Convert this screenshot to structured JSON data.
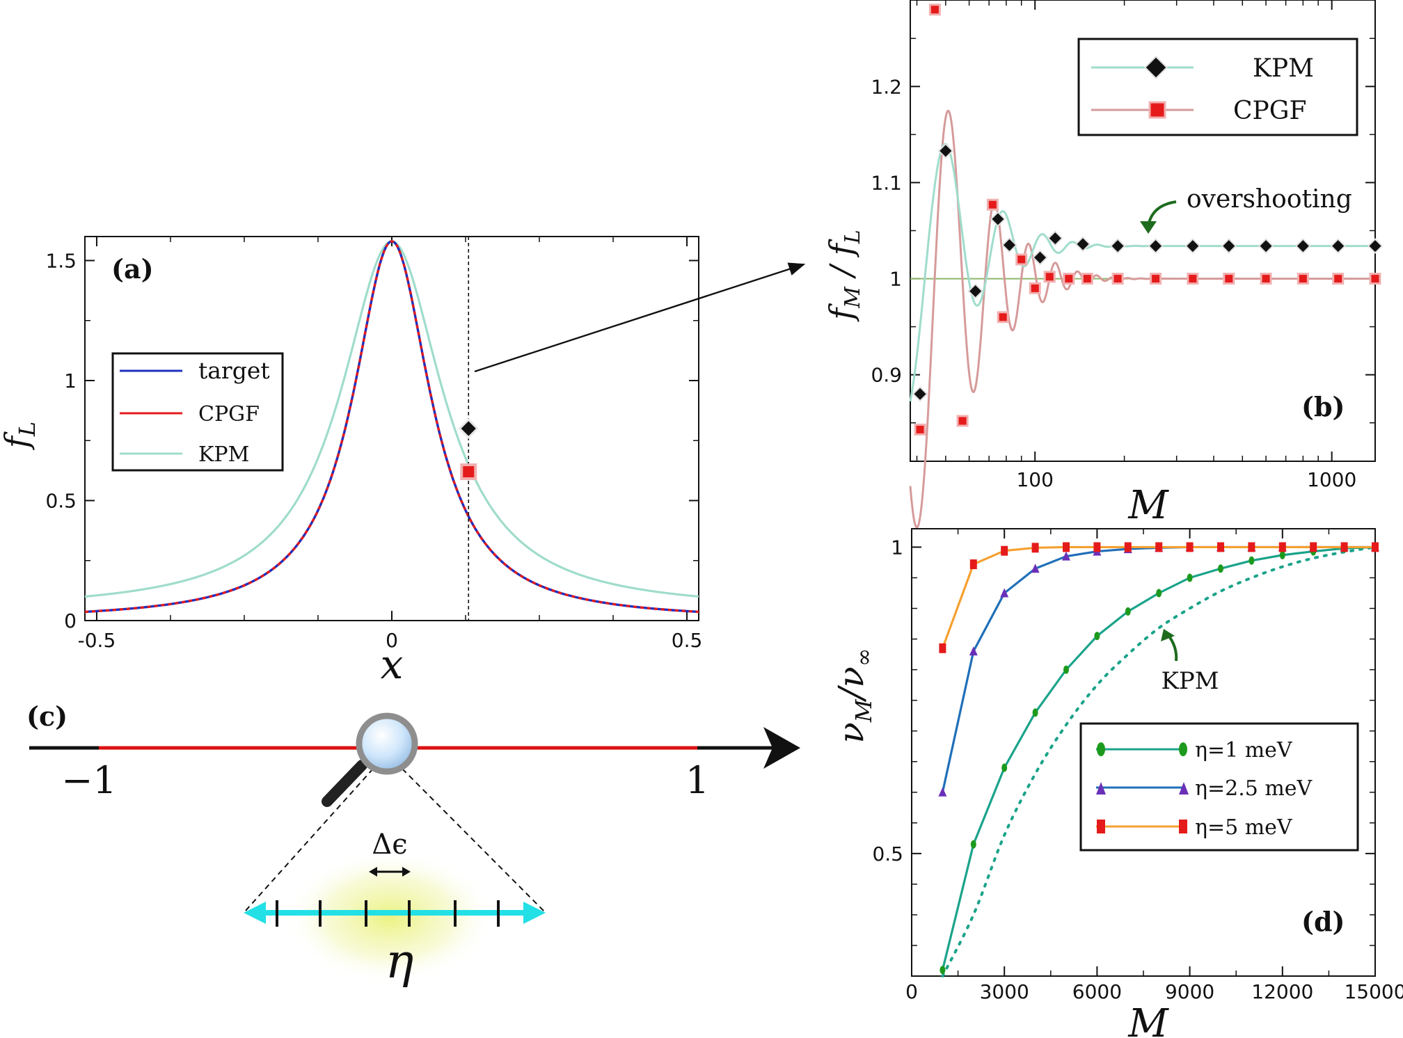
{
  "colors": {
    "target": "#1f2fbf",
    "cpgf": "#e51b1b",
    "kpm": "#9fdccb",
    "cpgf_b": "#d69a9a",
    "eta1": "#1aa38a",
    "eta25": "#1f6fb8",
    "eta5": "#f5a030",
    "arrow_green": "#1e6b1e",
    "line_red": "#dd1111",
    "cyan": "#22e0e6"
  },
  "chart_data": [
    {
      "id": "a",
      "type": "line",
      "panel_label": "(a)",
      "xlabel": "x",
      "ylabel": "f_L",
      "xlim": [
        -0.52,
        0.52
      ],
      "ylim": [
        0,
        1.6
      ],
      "xticks": [
        -0.5,
        0,
        0.5
      ],
      "xtick_labels": [
        "-0.5",
        "0",
        "0.5"
      ],
      "yticks": [
        0,
        0.5,
        1,
        1.5
      ],
      "ytick_labels": [
        "0",
        "0.5",
        "1",
        "1.5"
      ],
      "legend": {
        "position": "center-left",
        "entries": [
          "target",
          "CPGF",
          "KPM"
        ]
      },
      "series": [
        {
          "name": "target",
          "x": [
            -0.52,
            -0.4,
            -0.3,
            -0.2,
            -0.15,
            -0.1,
            -0.06,
            -0.03,
            0,
            0.03,
            0.06,
            0.1,
            0.13,
            0.15,
            0.2,
            0.3,
            0.4,
            0.52
          ],
          "y": [
            0.06,
            0.1,
            0.17,
            0.35,
            0.55,
            0.92,
            1.3,
            1.5,
            1.58,
            1.5,
            1.3,
            0.92,
            0.62,
            0.55,
            0.35,
            0.17,
            0.1,
            0.06
          ]
        },
        {
          "name": "CPGF",
          "x": [
            -0.52,
            -0.4,
            -0.3,
            -0.2,
            -0.15,
            -0.1,
            -0.06,
            -0.03,
            0,
            0.03,
            0.06,
            0.1,
            0.13,
            0.15,
            0.2,
            0.3,
            0.4,
            0.52
          ],
          "y": [
            0.06,
            0.1,
            0.17,
            0.35,
            0.55,
            0.92,
            1.3,
            1.5,
            1.58,
            1.5,
            1.3,
            0.92,
            0.62,
            0.55,
            0.35,
            0.17,
            0.1,
            0.06
          ]
        },
        {
          "name": "KPM",
          "x": [
            -0.52,
            -0.4,
            -0.3,
            -0.2,
            -0.15,
            -0.1,
            -0.06,
            -0.03,
            0,
            0.03,
            0.06,
            0.1,
            0.13,
            0.15,
            0.2,
            0.3,
            0.4,
            0.52
          ],
          "y": [
            0.17,
            0.25,
            0.36,
            0.6,
            0.8,
            1.12,
            1.4,
            1.54,
            1.58,
            1.54,
            1.4,
            1.12,
            0.8,
            0.75,
            0.55,
            0.33,
            0.23,
            0.17
          ]
        }
      ],
      "markers": [
        {
          "series": "KPM",
          "x": 0.13,
          "y": 0.8,
          "shape": "diamond"
        },
        {
          "series": "CPGF",
          "x": 0.13,
          "y": 0.62,
          "shape": "square"
        }
      ],
      "vline_x": 0.13
    },
    {
      "id": "b",
      "type": "line",
      "panel_label": "(b)",
      "xlabel": "M",
      "ylabel": "f_M / f_L",
      "xscale": "log",
      "xlim": [
        38,
        1400
      ],
      "ylim": [
        0.81,
        1.29
      ],
      "xticks": [
        100,
        1000
      ],
      "xtick_labels": [
        "100",
        "1000"
      ],
      "yticks": [
        0.9,
        1,
        1.1,
        1.2
      ],
      "ytick_labels": [
        "0.9",
        "1",
        "1.1",
        "1.2"
      ],
      "hline_y": 1,
      "annotation": "overshooting",
      "legend": {
        "position": "top-right",
        "entries": [
          "KPM",
          "CPGF"
        ]
      },
      "series": [
        {
          "name": "KPM",
          "x": [
            40,
            48,
            56,
            64,
            72,
            80,
            88,
            96,
            104,
            112,
            120,
            130,
            140,
            160,
            200,
            250,
            330,
            420,
            550,
            700,
            900,
            1100,
            1400
          ],
          "y": [
            0.84,
            0.93,
            1.12,
            1.08,
            1.0,
            1.03,
            1.06,
            1.04,
            1.02,
            1.03,
            1.04,
            1.032,
            1.035,
            1.034,
            1.034,
            1.034,
            1.034,
            1.034,
            1.034,
            1.034,
            1.034,
            1.034,
            1.034
          ]
        },
        {
          "name": "CPGF",
          "x": [
            40,
            44,
            48,
            52,
            56,
            60,
            64,
            68,
            72,
            76,
            80,
            84,
            88,
            92,
            96,
            100,
            104,
            108,
            112,
            116,
            120,
            130,
            140,
            160,
            200,
            250,
            330,
            420,
            550,
            700,
            900,
            1100,
            1400
          ],
          "y": [
            0.86,
            1.2,
            1.28,
            1.1,
            0.88,
            0.85,
            0.9,
            1.0,
            1.07,
            1.08,
            1.04,
            0.98,
            0.96,
            0.98,
            1.01,
            1.02,
            1.02,
            1.0,
            0.99,
            0.99,
            1.0,
            1.002,
            1.0,
            1.0,
            1.0,
            1.0,
            1.0,
            1.0,
            1.0,
            1.0,
            1.0,
            1.0,
            1.0
          ]
        }
      ],
      "markers_kpm": {
        "x": [
          41,
          50,
          63,
          75,
          82,
          104,
          117,
          145,
          190,
          255,
          340,
          450,
          600,
          800,
          1050,
          1400
        ],
        "y": [
          0.88,
          1.133,
          0.987,
          1.062,
          1.035,
          1.022,
          1.042,
          1.036,
          1.034,
          1.034,
          1.034,
          1.034,
          1.034,
          1.034,
          1.034,
          1.034
        ]
      },
      "markers_cpgf": {
        "x": [
          41,
          46,
          57,
          72,
          78,
          90,
          100,
          112,
          130,
          150,
          190,
          255,
          340,
          450,
          600,
          800,
          1050,
          1400
        ],
        "y": [
          0.843,
          1.28,
          0.852,
          1.077,
          0.96,
          1.02,
          0.99,
          1.002,
          1.0,
          1.0,
          1.0,
          1.0,
          1.0,
          1.0,
          1.0,
          1.0,
          1.0,
          1.0
        ]
      }
    },
    {
      "id": "d",
      "type": "line",
      "panel_label": "(d)",
      "xlabel": "M",
      "ylabel": "ν_M / ν_∞",
      "xlim": [
        0,
        15000
      ],
      "ylim": [
        0.3,
        1.03
      ],
      "xticks": [
        0,
        3000,
        6000,
        9000,
        12000,
        15000
      ],
      "xtick_labels": [
        "0",
        "3000",
        "6000",
        "9000",
        "12000",
        "15000"
      ],
      "yticks": [
        0.5,
        1
      ],
      "ytick_labels": [
        "0.5",
        "1"
      ],
      "annotation": "KPM",
      "legend": {
        "position": "center-right",
        "entries": [
          "η=1 meV",
          "η=2.5 meV",
          "η=5 meV"
        ]
      },
      "series": [
        {
          "name": "η=1 meV",
          "x": [
            1000,
            2000,
            3000,
            4000,
            5000,
            6000,
            7000,
            8000,
            9000,
            10000,
            11000,
            12000,
            13000,
            14000,
            15000
          ],
          "y": [
            0.31,
            0.515,
            0.64,
            0.73,
            0.8,
            0.855,
            0.895,
            0.925,
            0.95,
            0.965,
            0.978,
            0.987,
            0.993,
            0.998,
            1.0
          ]
        },
        {
          "name": "η=2.5 meV",
          "x": [
            1000,
            2000,
            3000,
            4000,
            5000,
            6000,
            7000,
            8000,
            9000,
            10000,
            11000,
            12000,
            13000,
            14000,
            15000
          ],
          "y": [
            0.6,
            0.83,
            0.925,
            0.965,
            0.985,
            0.993,
            0.997,
            0.999,
            1.0,
            1.0,
            1.0,
            1.0,
            1.0,
            1.0,
            1.0
          ]
        },
        {
          "name": "η=5 meV",
          "x": [
            1000,
            2000,
            3000,
            4000,
            5000,
            6000,
            7000,
            8000,
            9000,
            10000,
            11000,
            12000,
            13000,
            14000,
            15000
          ],
          "y": [
            0.835,
            0.972,
            0.994,
            0.999,
            1.0,
            1.0,
            1.0,
            1.0,
            1.0,
            1.0,
            1.0,
            1.0,
            1.0,
            1.0,
            1.0
          ]
        },
        {
          "name": "KPM",
          "style": "dotted",
          "x": [
            1000,
            2000,
            3000,
            4000,
            5000,
            6000,
            7000,
            8000,
            9000,
            10000,
            11000,
            12000,
            13000,
            14000,
            15000
          ],
          "y": [
            0.22,
            0.4,
            0.53,
            0.63,
            0.71,
            0.775,
            0.825,
            0.868,
            0.9,
            0.928,
            0.95,
            0.968,
            0.982,
            0.992,
            1.0
          ]
        }
      ]
    }
  ],
  "panel_c": {
    "label": "(c)",
    "left_label": "−1",
    "right_label": "1",
    "delta_label": "Δϵ",
    "eta_label": "η"
  }
}
